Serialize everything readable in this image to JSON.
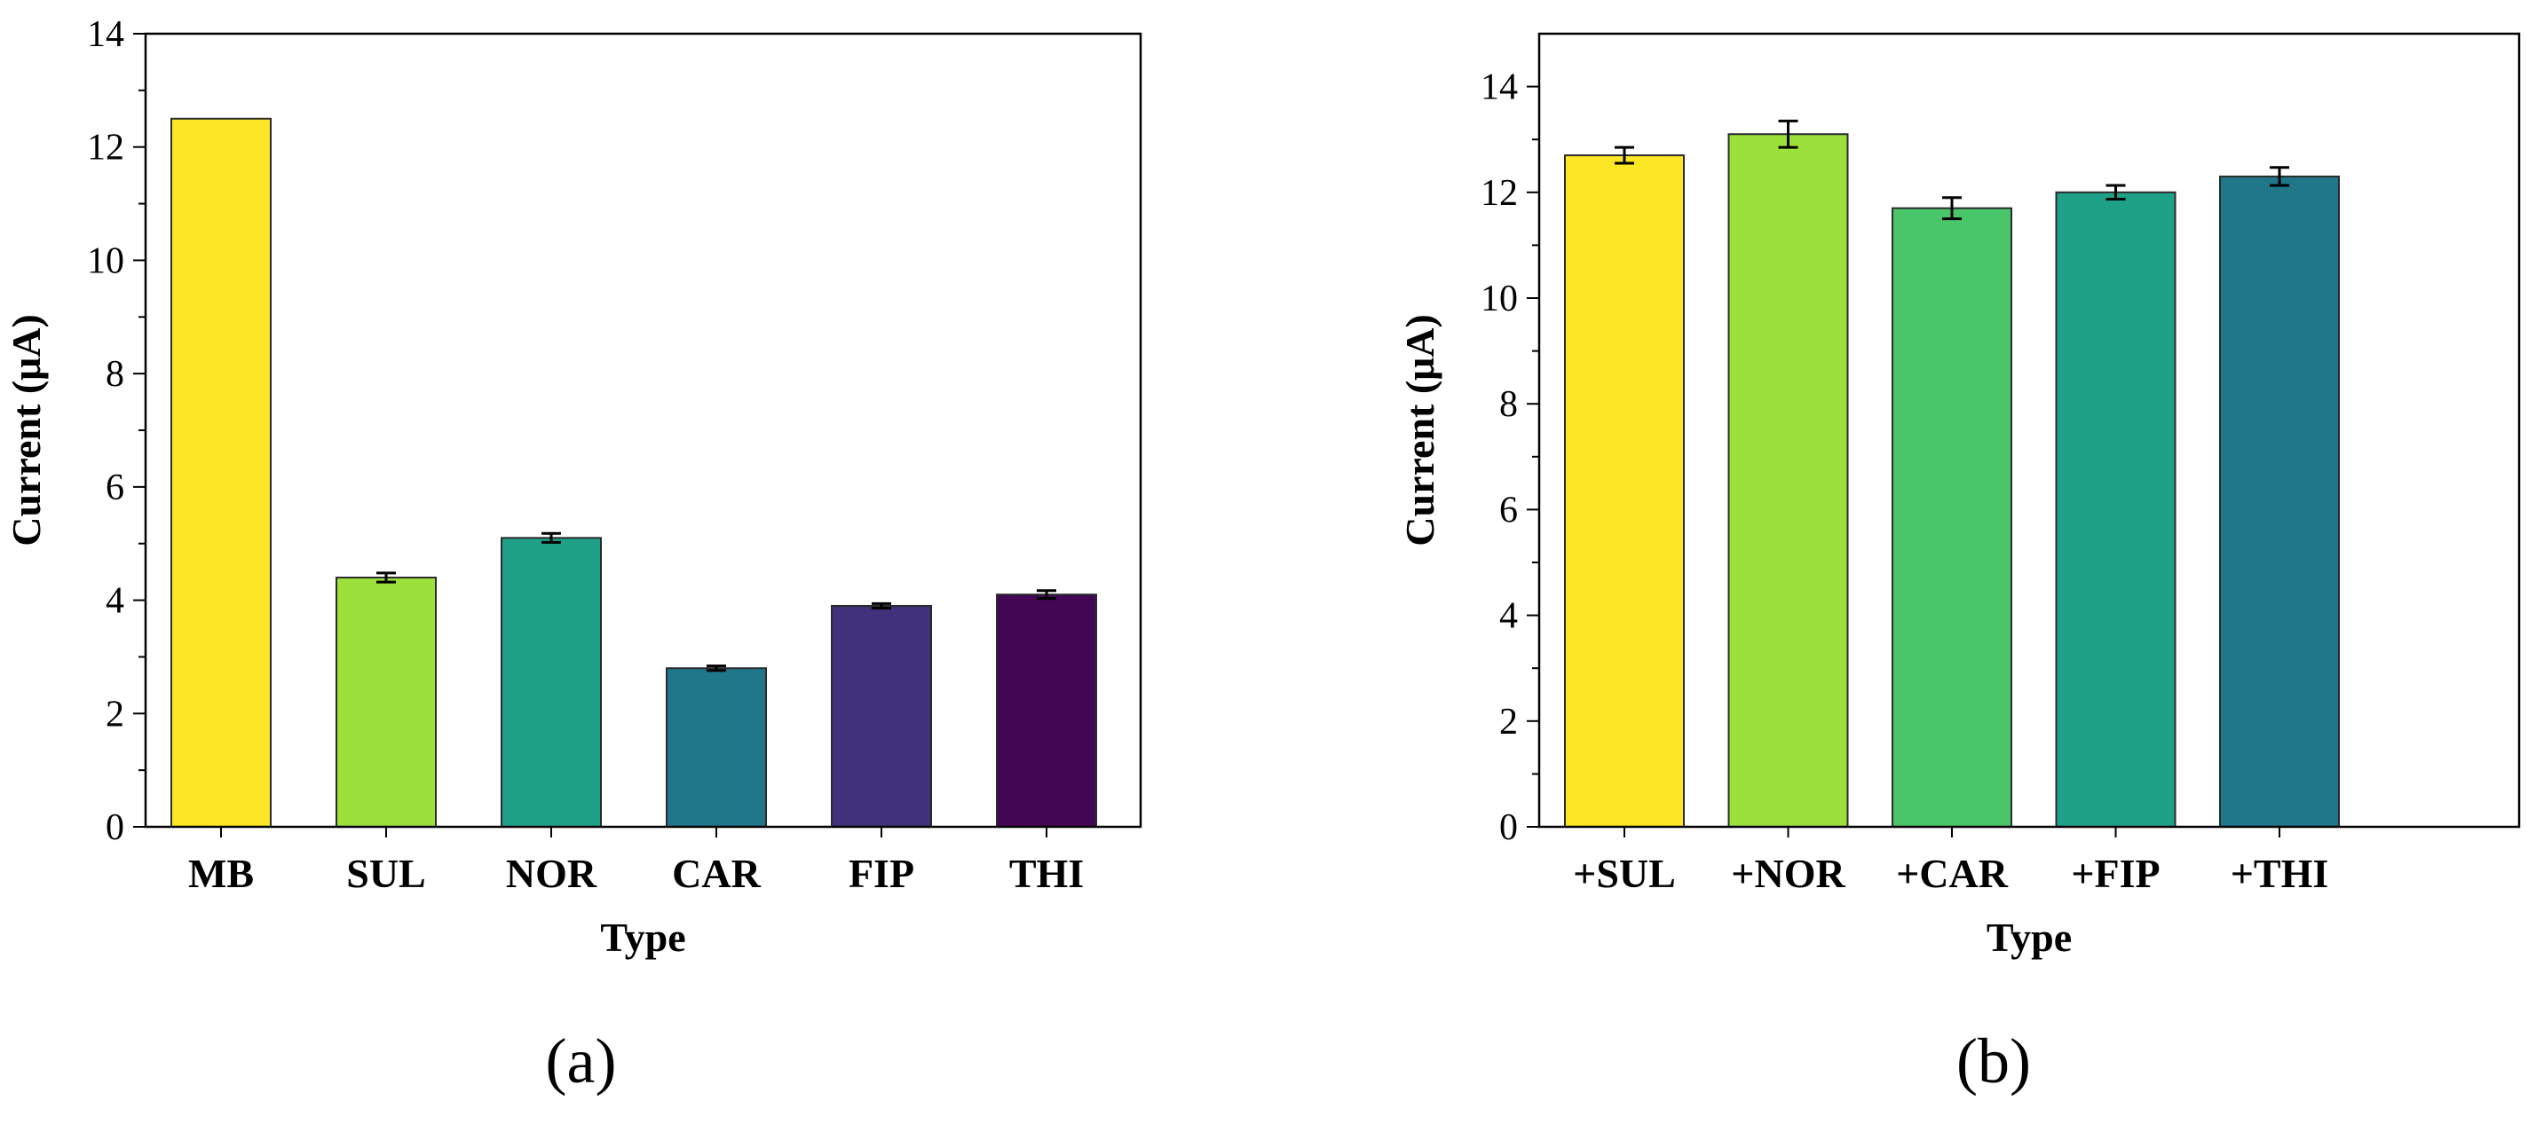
{
  "chart_data": [
    {
      "type": "bar",
      "panel_label": "(a)",
      "categories": [
        "MB",
        "SUL",
        "NOR",
        "CAR",
        "FIP",
        "THI"
      ],
      "values": [
        12.5,
        4.4,
        5.1,
        2.8,
        3.9,
        4.1
      ],
      "errors": [
        0,
        0.08,
        0.08,
        0.04,
        0.04,
        0.07
      ],
      "colors": [
        "#fde725",
        "#9be03b",
        "#1fa187",
        "#21778a",
        "#3f317a",
        "#430654"
      ],
      "xlabel": "Type",
      "ylabel": "Current (μA)",
      "ylim": [
        0,
        14
      ],
      "yticks": [
        0,
        2,
        4,
        6,
        8,
        10,
        12,
        14
      ],
      "grid": false
    },
    {
      "type": "bar",
      "panel_label": "(b)",
      "categories": [
        "+SUL",
        "+NOR",
        "+CAR",
        "+FIP",
        "+THI"
      ],
      "values": [
        12.7,
        13.1,
        11.7,
        12.0,
        12.3
      ],
      "errors": [
        0.15,
        0.25,
        0.2,
        0.13,
        0.17
      ],
      "colors": [
        "#fde725",
        "#9be03b",
        "#4ac66a",
        "#1fa187",
        "#21778a"
      ],
      "xlabel": "Type",
      "ylabel": "Current (μA)",
      "ylim": [
        0,
        15
      ],
      "yticks": [
        0,
        2,
        4,
        6,
        8,
        10,
        12,
        14
      ],
      "grid": false
    }
  ]
}
